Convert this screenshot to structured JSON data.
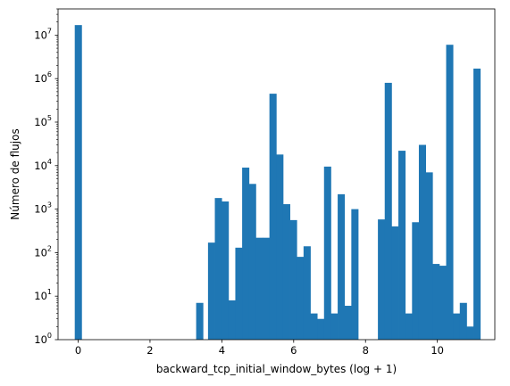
{
  "chart_data": {
    "type": "bar",
    "title": "",
    "xlabel": "backward_tcp_initial_window_bytes (log + 1)",
    "ylabel": "Número de flujos",
    "xlim": [
      -0.56,
      11.6
    ],
    "ylim": [
      1,
      40000000
    ],
    "yscale": "log",
    "bar_color": "#1f77b4",
    "bin_width": 0.19,
    "x_ticks": [
      0,
      2,
      4,
      6,
      8,
      10
    ],
    "x_tick_labels": [
      "0",
      "2",
      "4",
      "6",
      "8",
      "10"
    ],
    "y_ticks": [
      1,
      10,
      100,
      1000,
      10000,
      100000,
      1000000,
      10000000
    ],
    "y_tick_labels": [
      {
        "base": "10",
        "exp": "0"
      },
      {
        "base": "10",
        "exp": "1"
      },
      {
        "base": "10",
        "exp": "2"
      },
      {
        "base": "10",
        "exp": "3"
      },
      {
        "base": "10",
        "exp": "4"
      },
      {
        "base": "10",
        "exp": "5"
      },
      {
        "base": "10",
        "exp": "6"
      },
      {
        "base": "10",
        "exp": "7"
      }
    ],
    "bins": [
      {
        "x": 0.0,
        "value": 17000000
      },
      {
        "x": 3.38,
        "value": 7
      },
      {
        "x": 3.71,
        "value": 170
      },
      {
        "x": 3.9,
        "value": 1800
      },
      {
        "x": 4.09,
        "value": 1500
      },
      {
        "x": 4.28,
        "value": 8
      },
      {
        "x": 4.47,
        "value": 130
      },
      {
        "x": 4.66,
        "value": 9000
      },
      {
        "x": 4.85,
        "value": 3800
      },
      {
        "x": 5.04,
        "value": 220
      },
      {
        "x": 5.23,
        "value": 220
      },
      {
        "x": 5.42,
        "value": 450000
      },
      {
        "x": 5.61,
        "value": 18000
      },
      {
        "x": 5.8,
        "value": 1300
      },
      {
        "x": 5.99,
        "value": 560
      },
      {
        "x": 6.18,
        "value": 80
      },
      {
        "x": 6.37,
        "value": 140
      },
      {
        "x": 6.56,
        "value": 4
      },
      {
        "x": 6.75,
        "value": 3
      },
      {
        "x": 6.94,
        "value": 9500
      },
      {
        "x": 7.13,
        "value": 4
      },
      {
        "x": 7.32,
        "value": 2200
      },
      {
        "x": 7.51,
        "value": 6
      },
      {
        "x": 7.7,
        "value": 1000
      },
      {
        "x": 8.44,
        "value": 580
      },
      {
        "x": 8.63,
        "value": 800000
      },
      {
        "x": 8.82,
        "value": 400
      },
      {
        "x": 9.01,
        "value": 22000
      },
      {
        "x": 9.2,
        "value": 4
      },
      {
        "x": 9.39,
        "value": 500
      },
      {
        "x": 9.58,
        "value": 30000
      },
      {
        "x": 9.77,
        "value": 7000
      },
      {
        "x": 9.96,
        "value": 55
      },
      {
        "x": 10.15,
        "value": 50
      },
      {
        "x": 10.34,
        "value": 6000000
      },
      {
        "x": 10.53,
        "value": 4
      },
      {
        "x": 10.72,
        "value": 7
      },
      {
        "x": 10.91,
        "value": 2
      },
      {
        "x": 11.1,
        "value": 1700000
      }
    ]
  }
}
